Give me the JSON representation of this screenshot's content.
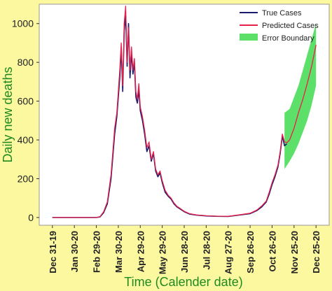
{
  "chart_data": {
    "type": "line",
    "xlabel": "Time (Calender date)",
    "ylabel": "Daily new deaths",
    "ylim": [
      -40,
      1100
    ],
    "xlim": [
      "2019-12-13",
      "2021-01-12"
    ],
    "y_ticks": [
      0,
      200,
      400,
      600,
      800,
      1000
    ],
    "x_ticks": [
      "2019-12-31",
      "2020-01-30",
      "2020-02-29",
      "2020-03-30",
      "2020-04-29",
      "2020-05-29",
      "2020-06-28",
      "2020-07-28",
      "2020-08-27",
      "2020-09-26",
      "2020-10-26",
      "2020-11-25",
      "2020-12-25"
    ],
    "x_tick_labels": [
      "Dec 31-19",
      "Jan 30-20",
      "Feb 29-20",
      "Mar 30-20",
      "Apr 29-20",
      "May 29-20",
      "Jun 28-20",
      "Jul 28-20",
      "Aug 27-20",
      "Sep 26-20",
      "Oct 26-20",
      "Nov 25-20",
      "Dec 25-20"
    ],
    "grid": false,
    "legend_position": "top-right",
    "series": [
      {
        "name": "True Cases",
        "color": "#1a1a6e",
        "x": [
          "2019-12-31",
          "2020-02-29",
          "2020-03-05",
          "2020-03-10",
          "2020-03-15",
          "2020-03-20",
          "2020-03-25",
          "2020-03-28",
          "2020-04-01",
          "2020-04-03",
          "2020-04-05",
          "2020-04-07",
          "2020-04-09",
          "2020-04-11",
          "2020-04-13",
          "2020-04-15",
          "2020-04-17",
          "2020-04-19",
          "2020-04-21",
          "2020-04-23",
          "2020-04-25",
          "2020-04-27",
          "2020-04-29",
          "2020-05-02",
          "2020-05-05",
          "2020-05-08",
          "2020-05-11",
          "2020-05-14",
          "2020-05-17",
          "2020-05-20",
          "2020-05-23",
          "2020-05-26",
          "2020-05-29",
          "2020-06-02",
          "2020-06-06",
          "2020-06-10",
          "2020-06-14",
          "2020-06-18",
          "2020-06-22",
          "2020-06-28",
          "2020-07-05",
          "2020-07-15",
          "2020-07-28",
          "2020-08-10",
          "2020-08-27",
          "2020-09-10",
          "2020-09-26",
          "2020-10-05",
          "2020-10-12",
          "2020-10-18",
          "2020-10-22",
          "2020-10-26",
          "2020-10-30",
          "2020-11-03",
          "2020-11-06",
          "2020-11-09",
          "2020-11-12",
          "2020-11-15"
        ],
        "values": [
          0,
          0,
          3,
          25,
          70,
          200,
          430,
          520,
          720,
          870,
          650,
          960,
          1040,
          780,
          1000,
          720,
          850,
          740,
          800,
          620,
          590,
          660,
          550,
          500,
          430,
          340,
          370,
          290,
          330,
          240,
          210,
          230,
          180,
          130,
          110,
          95,
          70,
          55,
          45,
          30,
          18,
          12,
          8,
          6,
          5,
          12,
          20,
          35,
          55,
          80,
          120,
          170,
          210,
          260,
          330,
          420,
          370,
          380
        ]
      },
      {
        "name": "Predicted Cases",
        "color": "#e8204a",
        "x": [
          "2019-12-31",
          "2020-02-29",
          "2020-03-05",
          "2020-03-10",
          "2020-03-15",
          "2020-03-20",
          "2020-03-25",
          "2020-03-28",
          "2020-04-01",
          "2020-04-03",
          "2020-04-05",
          "2020-04-07",
          "2020-04-09",
          "2020-04-11",
          "2020-04-13",
          "2020-04-15",
          "2020-04-17",
          "2020-04-19",
          "2020-04-21",
          "2020-04-23",
          "2020-04-25",
          "2020-04-27",
          "2020-04-29",
          "2020-05-02",
          "2020-05-05",
          "2020-05-08",
          "2020-05-11",
          "2020-05-14",
          "2020-05-17",
          "2020-05-20",
          "2020-05-23",
          "2020-05-26",
          "2020-05-29",
          "2020-06-02",
          "2020-06-06",
          "2020-06-10",
          "2020-06-14",
          "2020-06-18",
          "2020-06-22",
          "2020-06-28",
          "2020-07-05",
          "2020-07-15",
          "2020-07-28",
          "2020-08-10",
          "2020-08-27",
          "2020-09-10",
          "2020-09-26",
          "2020-10-05",
          "2020-10-12",
          "2020-10-18",
          "2020-10-22",
          "2020-10-26",
          "2020-10-30",
          "2020-11-03",
          "2020-11-06",
          "2020-11-09",
          "2020-11-12",
          "2020-11-15",
          "2020-11-19",
          "2020-11-25",
          "2020-12-01",
          "2020-12-07",
          "2020-12-13",
          "2020-12-19",
          "2020-12-25"
        ],
        "values": [
          0,
          0,
          4,
          30,
          80,
          220,
          460,
          540,
          760,
          900,
          680,
          1000,
          1090,
          800,
          980,
          760,
          880,
          760,
          820,
          650,
          610,
          690,
          570,
          520,
          450,
          360,
          390,
          300,
          340,
          250,
          220,
          240,
          190,
          140,
          115,
          100,
          75,
          58,
          48,
          32,
          20,
          13,
          9,
          7,
          6,
          13,
          22,
          38,
          60,
          85,
          130,
          180,
          220,
          270,
          340,
          430,
          390,
          385,
          400,
          460,
          540,
          610,
          690,
          780,
          890
        ]
      }
    ],
    "error_boundary": {
      "name": "Error Boundary",
      "color": "#5de06a",
      "x": [
        "2020-11-12",
        "2020-11-19",
        "2020-11-25",
        "2020-12-01",
        "2020-12-07",
        "2020-12-13",
        "2020-12-19",
        "2020-12-25"
      ],
      "lower": [
        250,
        290,
        330,
        380,
        440,
        500,
        580,
        680
      ],
      "upper": [
        540,
        560,
        620,
        680,
        760,
        840,
        920,
        1000
      ]
    }
  }
}
